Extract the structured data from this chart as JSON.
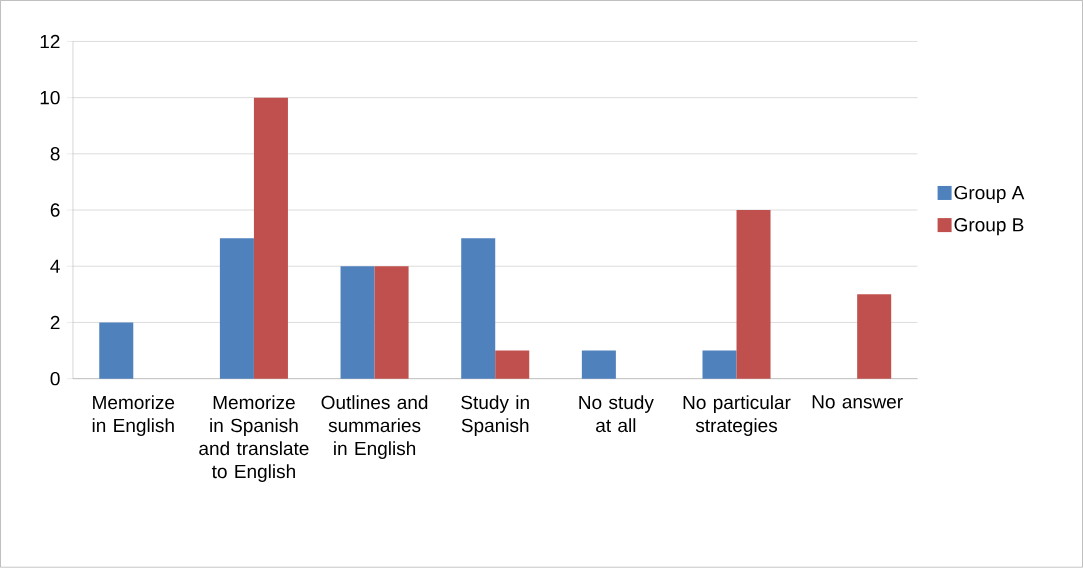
{
  "chart_data": {
    "type": "bar",
    "categories": [
      "Memorize in English",
      "Memorize in Spanish and translate to English",
      "Outlines and summaries in English",
      "Study in Spanish",
      "No study at all",
      "No particular strategies",
      "No answer"
    ],
    "series": [
      {
        "name": "Group A",
        "color": "#4f81bd",
        "values": [
          2,
          5,
          4,
          5,
          1,
          1,
          0
        ]
      },
      {
        "name": "Group B",
        "color": "#c0504d",
        "values": [
          0,
          10,
          4,
          1,
          0,
          6,
          3
        ]
      }
    ],
    "ylim": [
      0,
      12
    ],
    "yticks": [
      0,
      2,
      4,
      6,
      8,
      10,
      12
    ],
    "grid": "y",
    "legend": "right"
  }
}
